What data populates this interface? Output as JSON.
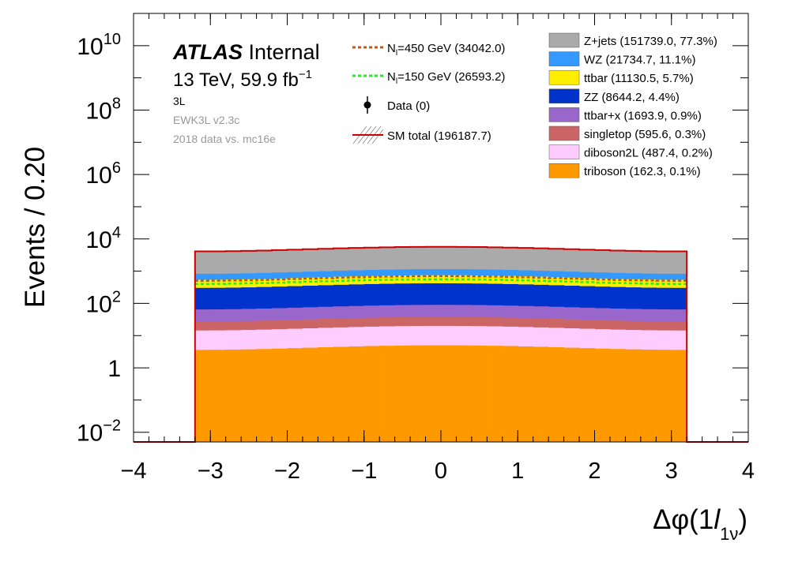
{
  "chart_data": {
    "type": "stacked-histogram",
    "scale": "log",
    "title": "",
    "xlabel": {
      "main": "Δφ(1",
      "var": "l",
      "sub": "1ν",
      "close": ")"
    },
    "ylabel": "Events / 0.20",
    "xlim": [
      -4,
      4
    ],
    "ylim": [
      0.005,
      100000000000.0
    ],
    "x_ticks": [
      "−4",
      "−3",
      "−2",
      "−1",
      "0",
      "1",
      "2",
      "3",
      "4"
    ],
    "y_ticks": [
      {
        "value": 10000000000.0,
        "base": "10",
        "exp": "10"
      },
      {
        "value": 100000000.0,
        "base": "10",
        "exp": "8"
      },
      {
        "value": 1000000.0,
        "base": "10",
        "exp": "6"
      },
      {
        "value": 10000.0,
        "base": "10",
        "exp": "4"
      },
      {
        "value": 100,
        "base": "10",
        "exp": "2"
      },
      {
        "value": 1,
        "base": "1",
        "exp": ""
      },
      {
        "value": 0.01,
        "base": "10",
        "exp": "−2"
      }
    ],
    "bins": {
      "start": -3.2,
      "width": 0.2,
      "count": 32
    },
    "annotations": {
      "atlas": "ATLAS",
      "internal": "Internal",
      "energy": "13 TeV, 59.9 fb",
      "energy_exp": "−1",
      "region": "3L",
      "version": "EWK3L v2.3c",
      "dataset": "2018 data vs. mc16e"
    },
    "signal_legend": [
      {
        "label_pre": "N",
        "label_sub": "l",
        "label_post": "=450 GeV (34042.0)",
        "color": "#b85c1e"
      },
      {
        "label_pre": "N",
        "label_sub": "l",
        "label_post": "=150 GeV (26593.2)",
        "color": "#22ee22"
      }
    ],
    "data_legend": "Data (0)",
    "total_legend": "SM total (196187.7)",
    "total_color": "#cc0000",
    "total_level": 5700,
    "signals": [
      {
        "name": "N=450 GeV",
        "level": 700,
        "color": "#b85c1e"
      },
      {
        "name": "N=150 GeV",
        "level": 560,
        "color": "#22ee22"
      }
    ],
    "series": [
      {
        "name": "triboson",
        "legend": "triboson (162.3, 0.1%)",
        "color": "#ff9900",
        "level": 5.0
      },
      {
        "name": "diboson2L",
        "legend": "diboson2L (487.4, 0.2%)",
        "color": "#ffccff",
        "level": 20
      },
      {
        "name": "singletop",
        "legend": "singletop (595.6, 0.3%)",
        "color": "#cc6666",
        "level": 38
      },
      {
        "name": "ttbar+x",
        "legend": "ttbar+x (1693.9, 0.9%)",
        "color": "#9966cc",
        "level": 90
      },
      {
        "name": "ZZ",
        "legend": "ZZ (8644.2, 4.4%)",
        "color": "#0033cc",
        "level": 420
      },
      {
        "name": "ttbar",
        "legend": "ttbar (11130.5, 5.7%)",
        "color": "#ffee00",
        "level": 750
      },
      {
        "name": "WZ",
        "legend": "WZ (21734.7, 11.1%)",
        "color": "#3399ff",
        "level": 1150
      },
      {
        "name": "Z+jets",
        "legend": "Z+jets (151739.0, 77.3%)",
        "color": "#aaaaaa",
        "level": 5700
      }
    ]
  }
}
